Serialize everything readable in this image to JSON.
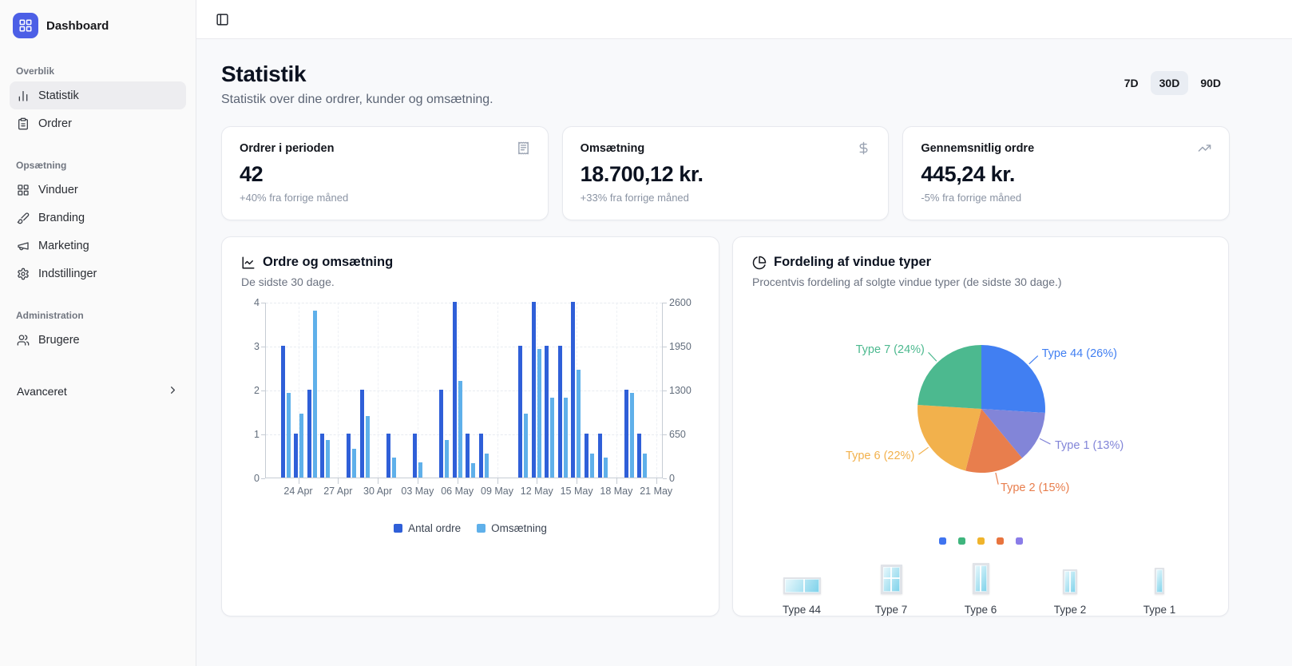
{
  "sidebar": {
    "logo_label": "Dashboard",
    "sections": [
      {
        "label": "Overblik",
        "items": [
          {
            "label": "Statistik",
            "icon": "bar-chart",
            "active": true
          },
          {
            "label": "Ordrer",
            "icon": "clipboard-list",
            "active": false
          }
        ]
      },
      {
        "label": "Opsætning",
        "items": [
          {
            "label": "Vinduer",
            "icon": "layout-grid",
            "active": false
          },
          {
            "label": "Branding",
            "icon": "brush",
            "active": false
          },
          {
            "label": "Marketing",
            "icon": "megaphone",
            "active": false
          },
          {
            "label": "Indstillinger",
            "icon": "gear",
            "active": false
          }
        ]
      },
      {
        "label": "Administration",
        "items": [
          {
            "label": "Brugere",
            "icon": "users",
            "active": false
          }
        ]
      }
    ],
    "advanced": {
      "label": "Avanceret",
      "icon": "chevron-right"
    }
  },
  "header": {
    "title": "Statistik",
    "subtitle": "Statistik over dine ordrer, kunder og omsætning.",
    "range_buttons": [
      {
        "label": "7D",
        "active": false
      },
      {
        "label": "30D",
        "active": true
      },
      {
        "label": "90D",
        "active": false
      }
    ]
  },
  "stat_cards": [
    {
      "label": "Ordrer i perioden",
      "icon": "receipt",
      "value": "42",
      "delta": "+40% fra forrige måned"
    },
    {
      "label": "Omsætning",
      "icon": "dollar-sign",
      "value": "18.700,12 kr.",
      "delta": "+33% fra forrige måned"
    },
    {
      "label": "Gennemsnitlig ordre",
      "icon": "trending-up",
      "value": "445,24 kr.",
      "delta": "-5% fra forrige måned"
    }
  ],
  "chart_data": [
    {
      "type": "bar",
      "title": "Ordre og omsætning",
      "subtitle": "De sidste 30 dage.",
      "grid": true,
      "legend_position": "bottom",
      "categories": [
        "22 Apr",
        "23 Apr",
        "24 Apr",
        "25 Apr",
        "26 Apr",
        "27 Apr",
        "28 Apr",
        "29 Apr",
        "30 Apr",
        "01 May",
        "02 May",
        "03 May",
        "04 May",
        "05 May",
        "06 May",
        "07 May",
        "08 May",
        "09 May",
        "10 May",
        "11 May",
        "12 May",
        "13 May",
        "14 May",
        "15 May",
        "16 May",
        "17 May",
        "18 May",
        "19 May",
        "20 May",
        "21 May"
      ],
      "x_tick_labels": [
        "24 Apr",
        "27 Apr",
        "30 Apr",
        "03 May",
        "06 May",
        "09 May",
        "12 May",
        "15 May",
        "18 May",
        "21 May"
      ],
      "series": [
        {
          "name": "Antal ordre",
          "axis": "left",
          "color": "#2f5fd8",
          "values": [
            0,
            3,
            1,
            2,
            1,
            0,
            1,
            2,
            0,
            1,
            0,
            1,
            0,
            2,
            4,
            1,
            1,
            0,
            0,
            3,
            4,
            3,
            3,
            4,
            1,
            1,
            0,
            2,
            1,
            0
          ]
        },
        {
          "name": "Omsætning",
          "axis": "right",
          "color": "#5fb0ea",
          "values": [
            0,
            1250,
            940,
            2470,
            550,
            0,
            420,
            915,
            0,
            300,
            0,
            230,
            0,
            560,
            1430,
            210,
            355,
            0,
            0,
            940,
            1900,
            1180,
            1180,
            1600,
            360,
            300,
            0,
            1250,
            360,
            0
          ]
        }
      ],
      "left_axis": {
        "ticks": [
          0,
          1,
          2,
          3,
          4
        ],
        "max": 4
      },
      "right_axis": {
        "ticks": [
          0,
          650,
          1300,
          1950,
          2600
        ],
        "max": 2600
      }
    },
    {
      "type": "pie",
      "title": "Fordeling af vindue typer",
      "subtitle": "Procentvis fordeling af solgte vindue typer (de sidste 30 dage.)",
      "start_angle": 0,
      "direction": "clockwise",
      "slices": [
        {
          "label": "Type 44",
          "pct": 26,
          "color": "#417ff2"
        },
        {
          "label": "Type 1",
          "pct": 13,
          "color": "#8285d8"
        },
        {
          "label": "Type 2",
          "pct": 15,
          "color": "#e87e4d"
        },
        {
          "label": "Type 6",
          "pct": 22,
          "color": "#f2b14c"
        },
        {
          "label": "Type 7",
          "pct": 24,
          "color": "#4cb98f"
        }
      ]
    }
  ],
  "windows_row": {
    "dots": [
      "#3f74f0",
      "#3fb57d",
      "#f0b42c",
      "#e8743e",
      "#8a7ce8"
    ],
    "items": [
      {
        "label": "Type 44",
        "shape": "wide"
      },
      {
        "label": "Type 7",
        "shape": "grid"
      },
      {
        "label": "Type 6",
        "shape": "tall-door"
      },
      {
        "label": "Type 2",
        "shape": "split"
      },
      {
        "label": "Type 1",
        "shape": "narrow"
      }
    ]
  }
}
